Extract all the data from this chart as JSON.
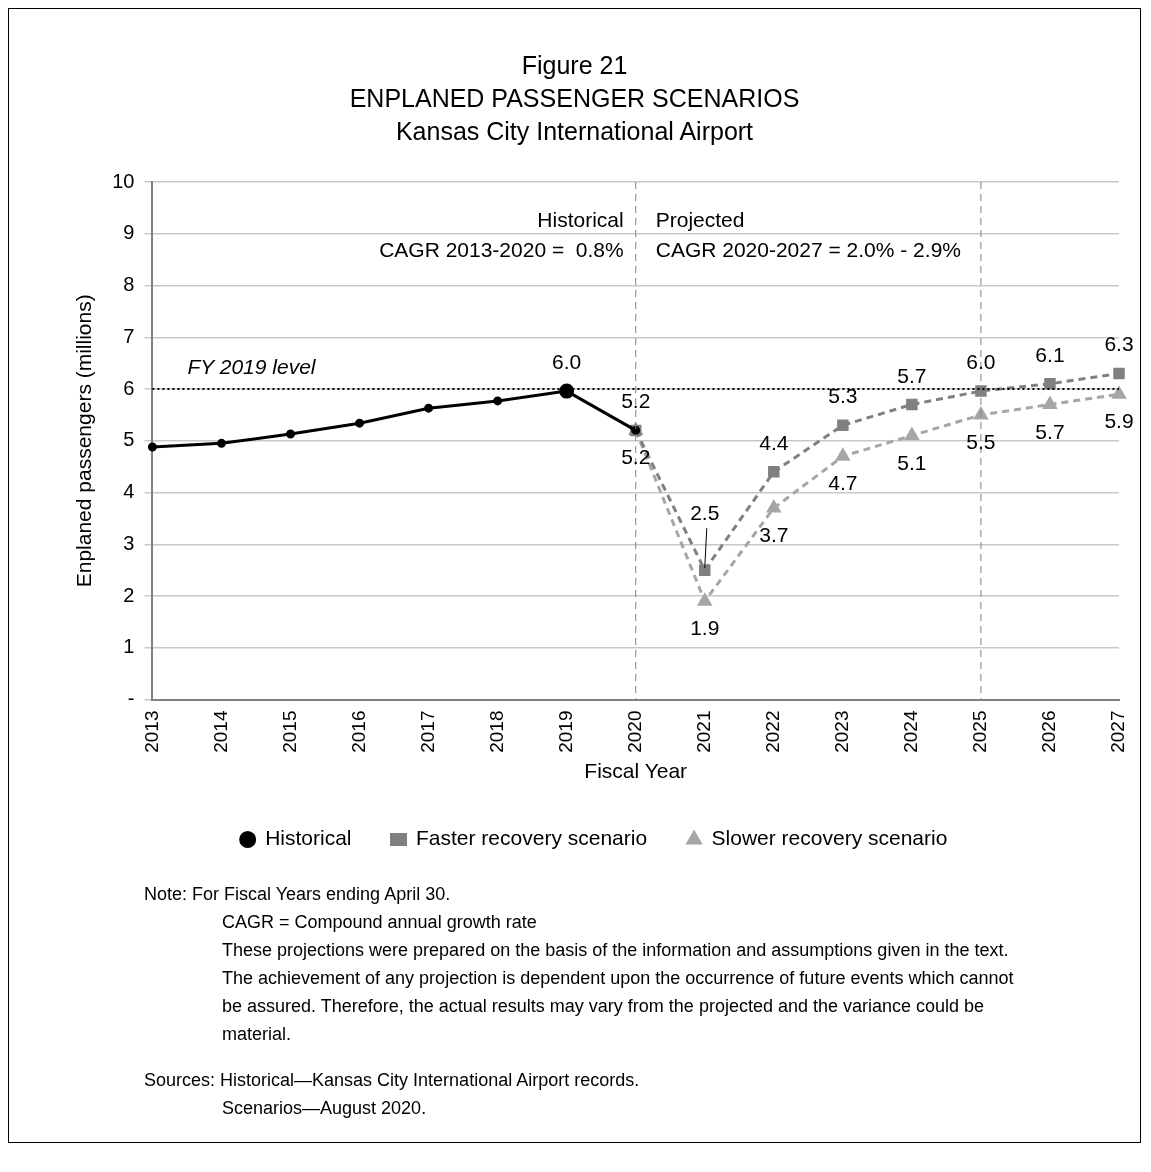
{
  "chart_data": {
    "type": "line",
    "title": "Figure 21\nENPLANED PASSENGER SCENARIOS\nKansas City International Airport",
    "xlabel": "Fiscal Year",
    "ylabel": "Enplaned passengers (millions)",
    "categories": [
      "2013",
      "2014",
      "2015",
      "2016",
      "2017",
      "2018",
      "2019",
      "2020",
      "2021",
      "2022",
      "2023",
      "2024",
      "2025",
      "2026",
      "2027"
    ],
    "series": [
      {
        "name": "Historical",
        "color": "#000000",
        "line_style": "solid",
        "marker": "circle",
        "values": [
          4.88,
          4.95,
          5.13,
          5.34,
          5.63,
          5.77,
          5.96,
          5.2,
          null,
          null,
          null,
          null,
          null,
          null,
          null
        ],
        "value_labels": [
          null,
          null,
          null,
          null,
          null,
          null,
          "6.0",
          null,
          null,
          null,
          null,
          null,
          null,
          null,
          null
        ]
      },
      {
        "name": "Faster recovery scenario",
        "color": "#808080",
        "line_style": "dashed",
        "marker": "square",
        "values": [
          null,
          null,
          null,
          null,
          null,
          null,
          null,
          5.2,
          2.5,
          4.4,
          5.3,
          5.7,
          5.96,
          6.1,
          6.3
        ],
        "value_labels": [
          null,
          null,
          null,
          null,
          null,
          null,
          null,
          "5.2",
          "2.5",
          "4.4",
          "5.3",
          "5.7",
          "6.0",
          "6.1",
          "6.3"
        ]
      },
      {
        "name": "Slower recovery scenario",
        "color": "#a6a6a6",
        "line_style": "dashed",
        "marker": "triangle",
        "values": [
          null,
          null,
          null,
          null,
          null,
          null,
          null,
          5.2,
          1.9,
          3.7,
          4.7,
          5.1,
          5.5,
          5.7,
          5.9
        ],
        "value_labels": [
          null,
          null,
          null,
          null,
          null,
          null,
          null,
          "5.2",
          "1.9",
          "3.7",
          "4.7",
          "5.1",
          "5.5",
          "5.7",
          "5.9"
        ]
      }
    ],
    "ylim": [
      0,
      10
    ],
    "yticks": [
      {
        "value": 0,
        "label": "-"
      },
      1,
      2,
      3,
      4,
      5,
      6,
      7,
      8,
      9,
      10
    ],
    "grid": "y",
    "legend": "bottom",
    "ref_lines": [
      {
        "axis": "y",
        "value": 6,
        "label": "FY 2019 level",
        "color": "#000000",
        "line_style": "dotted"
      },
      {
        "axis": "x",
        "value": "2020",
        "label": null,
        "color": "#808080",
        "line_style": "dashed"
      },
      {
        "axis": "x",
        "value": "2025",
        "label": null,
        "color": "#808080",
        "line_style": "dashed"
      }
    ],
    "annotations": [
      "Historical",
      "CAGR 2013-2020 =  0.8%",
      "Projected",
      "CAGR 2020-2027 = 2.0% - 2.9%",
      "Note: For Fiscal Years ending April 30.",
      "CAGR = Compound annual growth rate",
      "These projections were prepared on the basis of the information and assumptions given in the text. The achievement of any projection is dependent upon the occurrence of future events which cannot be assured. Therefore, the actual results may vary from the projected and the variance could be material.",
      "Sources: Historical—Kansas City International Airport records.",
      "Scenarios—August 2020."
    ]
  }
}
